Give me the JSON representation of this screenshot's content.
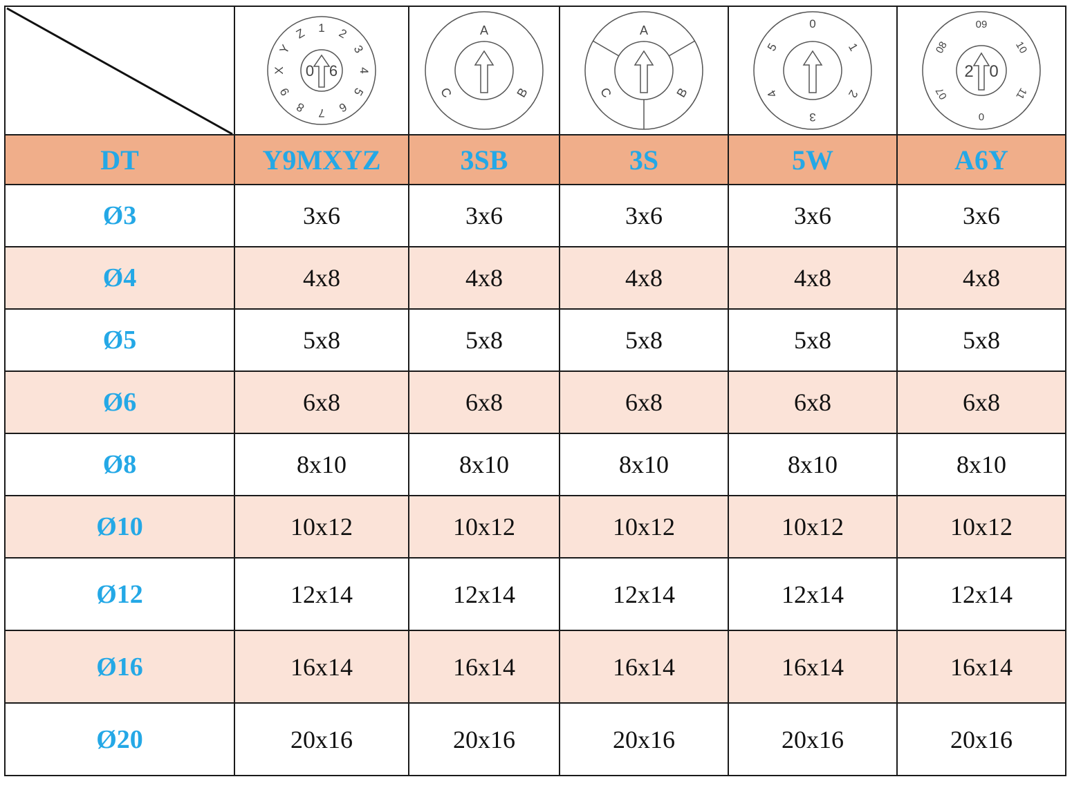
{
  "columns": [
    "DT",
    "Y9MXYZ",
    "3SB",
    "3S",
    "5W",
    "A6Y"
  ],
  "dials": [
    {
      "name": "Y9MXYZ",
      "outer_labels": [
        "1",
        "2",
        "3",
        "4",
        "5",
        "6",
        "7",
        "8",
        "9",
        "X",
        "Y",
        "Z"
      ],
      "inner_labels": [
        "0",
        "6"
      ]
    },
    {
      "name": "3SB",
      "outer_labels": [
        "A",
        "B",
        "C"
      ]
    },
    {
      "name": "3S",
      "outer_labels": [
        "A",
        "B",
        "C"
      ]
    },
    {
      "name": "5W",
      "outer_labels": [
        "0",
        "1",
        "2",
        "3",
        "4",
        "5"
      ]
    },
    {
      "name": "A6Y",
      "outer_labels": [
        "09",
        "10",
        "11",
        "0",
        "07",
        "08"
      ],
      "inner_labels": [
        "2",
        "0"
      ]
    }
  ],
  "rows": [
    {
      "dt": "Ø3",
      "values": [
        "3x6",
        "3x6",
        "3x6",
        "3x6",
        "3x6"
      ]
    },
    {
      "dt": "Ø4",
      "values": [
        "4x8",
        "4x8",
        "4x8",
        "4x8",
        "4x8"
      ]
    },
    {
      "dt": "Ø5",
      "values": [
        "5x8",
        "5x8",
        "5x8",
        "5x8",
        "5x8"
      ]
    },
    {
      "dt": "Ø6",
      "values": [
        "6x8",
        "6x8",
        "6x8",
        "6x8",
        "6x8"
      ]
    },
    {
      "dt": "Ø8",
      "values": [
        "8x10",
        "8x10",
        "8x10",
        "8x10",
        "8x10"
      ]
    },
    {
      "dt": "Ø10",
      "values": [
        "10x12",
        "10x12",
        "10x12",
        "10x12",
        "10x12"
      ]
    },
    {
      "dt": "Ø12",
      "values": [
        "12x14",
        "12x14",
        "12x14",
        "12x14",
        "12x14"
      ]
    },
    {
      "dt": "Ø16",
      "values": [
        "16x14",
        "16x14",
        "16x14",
        "16x14",
        "16x14"
      ]
    },
    {
      "dt": "Ø20",
      "values": [
        "20x16",
        "20x16",
        "20x16",
        "20x16",
        "20x16"
      ]
    }
  ],
  "colors": {
    "header_bg": "#f0ae8a",
    "accent_text": "#24a8e6",
    "stripe_bg": "#fbe3d8"
  }
}
